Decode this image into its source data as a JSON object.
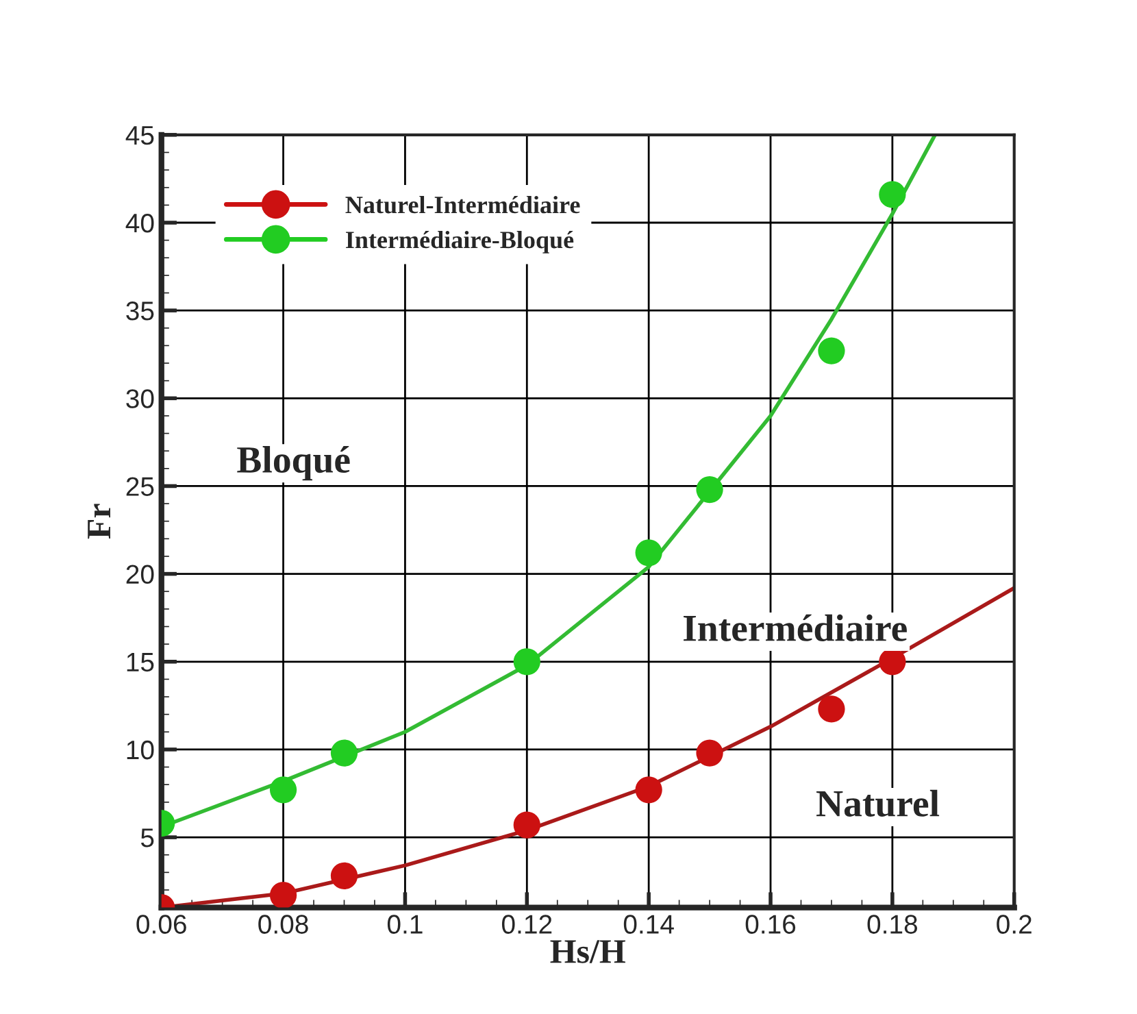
{
  "chart_data": {
    "type": "scatter",
    "xlabel": "Hs/H",
    "ylabel": "Fr",
    "xlim": [
      0.06,
      0.2
    ],
    "xticks": [
      0.06,
      0.08,
      0.1,
      0.12,
      0.14,
      0.16,
      0.18,
      0.2
    ],
    "ylim": [
      1,
      45
    ],
    "yticks": [
      5,
      10,
      15,
      20,
      25,
      30,
      35,
      40,
      45
    ],
    "grid": true,
    "legend": "top left",
    "series": [
      {
        "name": "Naturel-Intermédiaire",
        "marker": "circle",
        "color": "#cc1111",
        "x": [
          0.06,
          0.08,
          0.09,
          0.12,
          0.14,
          0.15,
          0.17,
          0.18
        ],
        "values": [
          1.0,
          1.7,
          2.8,
          5.7,
          7.7,
          9.8,
          12.3,
          15.0
        ]
      },
      {
        "name": "Intermédiaire-Bloqué",
        "marker": "circle",
        "color": "#22cc22",
        "x": [
          0.06,
          0.08,
          0.09,
          0.12,
          0.14,
          0.15,
          0.17,
          0.18
        ],
        "values": [
          5.8,
          7.7,
          9.8,
          15.0,
          21.2,
          24.8,
          32.7,
          41.6
        ]
      },
      {
        "type": "line",
        "marker": "none",
        "color": "#aa1a1a",
        "x": [
          0.06,
          0.08,
          0.1,
          0.12,
          0.14,
          0.16,
          0.18,
          0.2
        ],
        "values": [
          1.0,
          1.8,
          3.4,
          5.4,
          7.9,
          11.3,
          15.2,
          19.2
        ]
      },
      {
        "type": "line",
        "marker": "none",
        "color": "#33bb33",
        "x": [
          0.06,
          0.08,
          0.1,
          0.12,
          0.14,
          0.16,
          0.17,
          0.18,
          0.187
        ],
        "values": [
          5.6,
          8.2,
          11.0,
          14.8,
          20.4,
          29.0,
          34.5,
          40.5,
          45.0
        ]
      }
    ],
    "annotations": [
      "Bloqué",
      "Intermédiaire",
      "Naturel"
    ]
  }
}
